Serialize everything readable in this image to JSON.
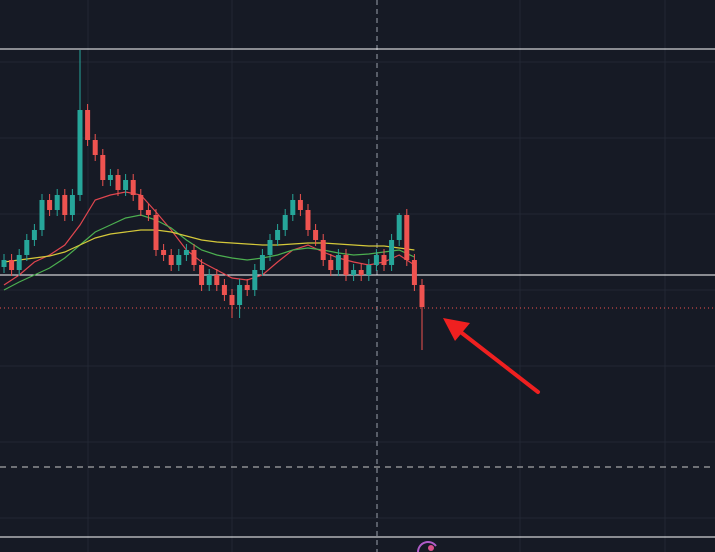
{
  "chart_data": {
    "type": "candlestick",
    "ylim": [
      0,
      552
    ],
    "up_color": "#26a69a",
    "down_color": "#ef5350",
    "ohlc": [
      [
        285,
        298,
        279,
        292
      ],
      [
        292,
        298,
        276,
        282
      ],
      [
        282,
        303,
        276,
        297
      ],
      [
        297,
        318,
        291,
        312
      ],
      [
        312,
        328,
        306,
        322
      ],
      [
        322,
        358,
        316,
        352
      ],
      [
        352,
        358,
        336,
        342
      ],
      [
        342,
        363,
        336,
        357
      ],
      [
        357,
        363,
        331,
        337
      ],
      [
        337,
        363,
        331,
        357
      ],
      [
        357,
        502,
        351,
        442
      ],
      [
        442,
        448,
        406,
        412
      ],
      [
        412,
        418,
        391,
        397
      ],
      [
        397,
        403,
        366,
        372
      ],
      [
        372,
        383,
        366,
        377
      ],
      [
        377,
        383,
        356,
        362
      ],
      [
        362,
        378,
        356,
        372
      ],
      [
        372,
        378,
        351,
        357
      ],
      [
        357,
        363,
        336,
        342
      ],
      [
        342,
        348,
        331,
        337
      ],
      [
        337,
        343,
        296,
        302
      ],
      [
        302,
        308,
        291,
        297
      ],
      [
        297,
        303,
        281,
        287
      ],
      [
        287,
        303,
        281,
        297
      ],
      [
        297,
        308,
        291,
        302
      ],
      [
        302,
        308,
        281,
        287
      ],
      [
        287,
        293,
        261,
        267
      ],
      [
        267,
        283,
        261,
        277
      ],
      [
        277,
        283,
        261,
        267
      ],
      [
        267,
        273,
        251,
        257
      ],
      [
        257,
        263,
        234,
        247
      ],
      [
        247,
        273,
        234,
        267
      ],
      [
        267,
        273,
        256,
        262
      ],
      [
        262,
        288,
        256,
        282
      ],
      [
        282,
        303,
        276,
        297
      ],
      [
        297,
        318,
        291,
        312
      ],
      [
        312,
        328,
        306,
        322
      ],
      [
        322,
        343,
        316,
        337
      ],
      [
        337,
        358,
        331,
        352
      ],
      [
        352,
        358,
        336,
        342
      ],
      [
        342,
        348,
        316,
        322
      ],
      [
        322,
        328,
        306,
        312
      ],
      [
        312,
        318,
        286,
        292
      ],
      [
        292,
        298,
        276,
        282
      ],
      [
        282,
        303,
        276,
        297
      ],
      [
        297,
        303,
        271,
        277
      ],
      [
        277,
        288,
        271,
        282
      ],
      [
        282,
        288,
        271,
        277
      ],
      [
        277,
        293,
        271,
        287
      ],
      [
        287,
        303,
        281,
        297
      ],
      [
        297,
        303,
        281,
        287
      ],
      [
        287,
        318,
        281,
        312
      ],
      [
        312,
        339,
        306,
        337
      ],
      [
        337,
        343,
        286,
        292
      ],
      [
        292,
        298,
        261,
        267
      ],
      [
        267,
        273,
        202,
        245
      ]
    ],
    "ma_x": [
      0,
      2,
      4,
      6,
      8,
      10,
      12,
      14,
      16,
      18,
      20,
      22,
      24,
      26,
      28,
      30,
      32,
      34,
      36,
      38,
      40,
      42,
      44,
      46,
      48,
      50,
      52,
      54
    ],
    "series": [
      {
        "color": "#e0464f",
        "values": [
          267,
          277,
          290,
          297,
          307,
          327,
          352,
          357,
          360,
          357,
          340,
          322,
          302,
          290,
          282,
          274,
          272,
          277,
          290,
          302,
          307,
          300,
          294,
          290,
          287,
          290,
          297,
          287
        ]
      },
      {
        "color": "#4caf50",
        "values": [
          262,
          270,
          277,
          284,
          294,
          307,
          320,
          327,
          334,
          337,
          332,
          324,
          312,
          302,
          297,
          294,
          292,
          294,
          297,
          302,
          304,
          302,
          299,
          297,
          298,
          300,
          302,
          295
        ]
      },
      {
        "color": "#d4c83a",
        "values": [
          290,
          292,
          294,
          296,
          300,
          307,
          314,
          318,
          320,
          322,
          322,
          320,
          316,
          312,
          310,
          309,
          308,
          307,
          307,
          308,
          309,
          309,
          308,
          307,
          306,
          306,
          304,
          302
        ]
      }
    ],
    "hlines": [
      {
        "value": 503,
        "color": "#ffffff",
        "style": "solid"
      },
      {
        "value": 277,
        "color": "#ffffff",
        "style": "solid"
      },
      {
        "value": 244,
        "color": "#ef5350",
        "style": "dotted"
      },
      {
        "value": 85,
        "color": "#c8c8c8",
        "style": "dashed"
      }
    ]
  }
}
